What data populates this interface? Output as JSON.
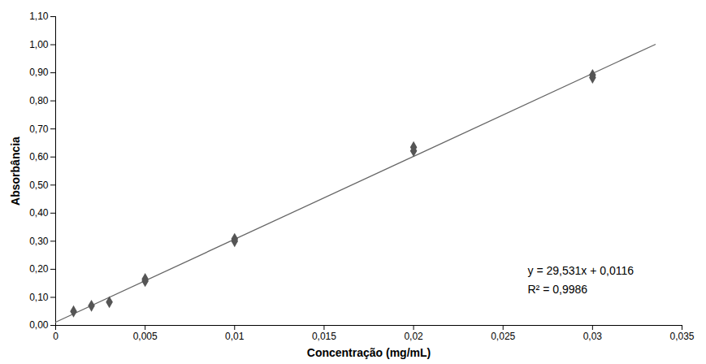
{
  "chart_data": {
    "type": "scatter",
    "xlabel": "Concentração (mg/mL)",
    "ylabel": "Absorbância",
    "annotations": [
      "y = 29,531x + 0,0116",
      "R² = 0,9986"
    ],
    "series": [
      {
        "type": "scatter",
        "marker": "diamond",
        "color": "#555555",
        "x": [
          0.001,
          0.002,
          0.003,
          0.005,
          0.005,
          0.01,
          0.01,
          0.02,
          0.02,
          0.03,
          0.03
        ],
        "values": [
          0.05,
          0.07,
          0.083,
          0.158,
          0.165,
          0.3,
          0.308,
          0.622,
          0.635,
          0.883,
          0.892
        ]
      },
      {
        "type": "line",
        "line_style": "solid",
        "color": "#666666",
        "x": [
          0.0,
          0.0335
        ],
        "values": [
          0.0116,
          1.0008885
        ]
      }
    ],
    "xlim": [
      0,
      0.035
    ],
    "ylim": [
      0.0,
      1.1
    ],
    "xticks": [
      0,
      {
        "value": 0.005,
        "label": "0,005"
      },
      {
        "value": 0.01,
        "label": "0,01"
      },
      {
        "value": 0.015,
        "label": "0,015"
      },
      {
        "value": 0.02,
        "label": "0,02"
      },
      {
        "value": 0.025,
        "label": "0,025"
      },
      {
        "value": 0.03,
        "label": "0,03"
      },
      {
        "value": 0.035,
        "label": "0,035"
      }
    ],
    "yticks": [
      {
        "value": 0.0,
        "label": "0,00"
      },
      {
        "value": 0.1,
        "label": "0,10"
      },
      {
        "value": 0.2,
        "label": "0,20"
      },
      {
        "value": 0.3,
        "label": "0,30"
      },
      {
        "value": 0.4,
        "label": "0,40"
      },
      {
        "value": 0.5,
        "label": "0,50"
      },
      {
        "value": 0.6,
        "label": "0,60"
      },
      {
        "value": 0.7,
        "label": "0,70"
      },
      {
        "value": 0.8,
        "label": "0,80"
      },
      {
        "value": 0.9,
        "label": "0,90"
      },
      {
        "value": 1.0,
        "label": "1,00"
      },
      {
        "value": 1.1,
        "label": "1,10"
      }
    ],
    "grid": false
  }
}
